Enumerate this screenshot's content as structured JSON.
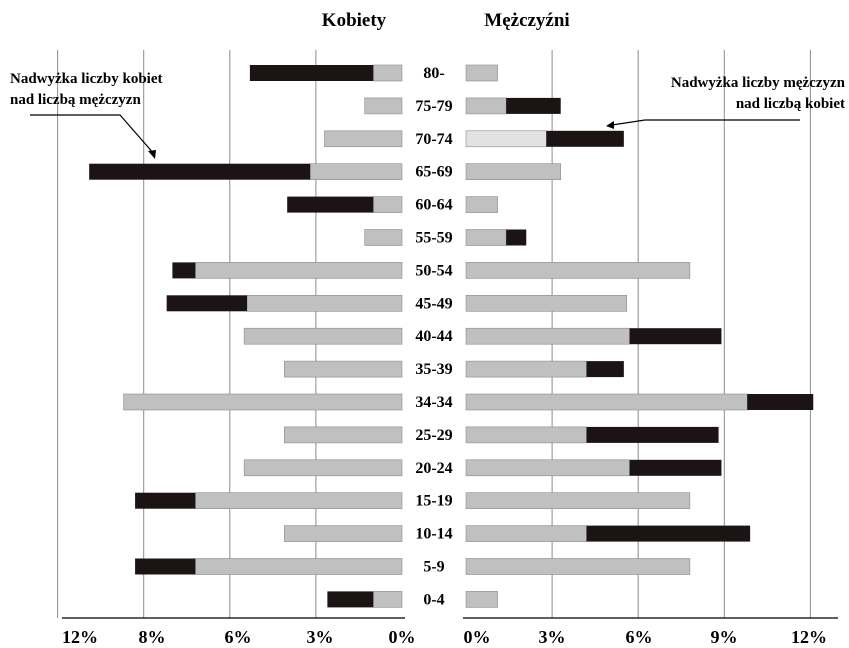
{
  "chart_data": {
    "type": "bar",
    "left_title": "Kobiety",
    "right_title": "Mężczyźni",
    "categories": [
      "80-",
      "75-79",
      "70-74",
      "65-69",
      "60-64",
      "55-59",
      "50-54",
      "45-49",
      "40-44",
      "35-39",
      "34-34",
      "25-29",
      "20-24",
      "15-19",
      "10-14",
      "5-9",
      "0-4"
    ],
    "series": [
      {
        "side": "left",
        "base": [
          1.0,
          1.3,
          2.7,
          3.2,
          1.0,
          1.3,
          7.2,
          5.4,
          5.5,
          4.1,
          9.7,
          4.1,
          5.5,
          7.2,
          4.1,
          7.2,
          1.0
        ],
        "excess": [
          4.3,
          0,
          0,
          7.7,
          3.0,
          0,
          0.8,
          2.8,
          0,
          0,
          0,
          0,
          0,
          2.1,
          0,
          2.1,
          1.6
        ]
      },
      {
        "side": "right",
        "base": [
          1.1,
          1.4,
          2.8,
          3.3,
          1.1,
          1.4,
          7.8,
          5.6,
          5.7,
          4.2,
          9.8,
          4.2,
          5.7,
          7.8,
          4.2,
          7.8,
          1.1
        ],
        "excess": [
          0,
          1.9,
          2.7,
          0,
          0,
          0.7,
          0,
          0,
          3.2,
          1.3,
          2.3,
          4.6,
          3.2,
          0,
          5.7,
          0,
          0
        ]
      }
    ],
    "left_ticks": [
      "12%",
      "8%",
      "6%",
      "3%",
      "0%"
    ],
    "right_ticks": [
      "0%",
      "3%",
      "6%",
      "9%",
      "12%"
    ],
    "xlim": [
      0,
      12
    ],
    "colors": {
      "base": "#c0c0c0",
      "base_light": "#e2e2e2",
      "excess": "#1c1414",
      "grid": "#8c8c8c"
    },
    "annotations": {
      "left": [
        "Nadwyżka liczby kobiet",
        "nad liczbą mężczyzn"
      ],
      "right": [
        "Nadwyżka liczby mężczyzn",
        "nad liczbą kobiet"
      ]
    },
    "grid": true
  }
}
